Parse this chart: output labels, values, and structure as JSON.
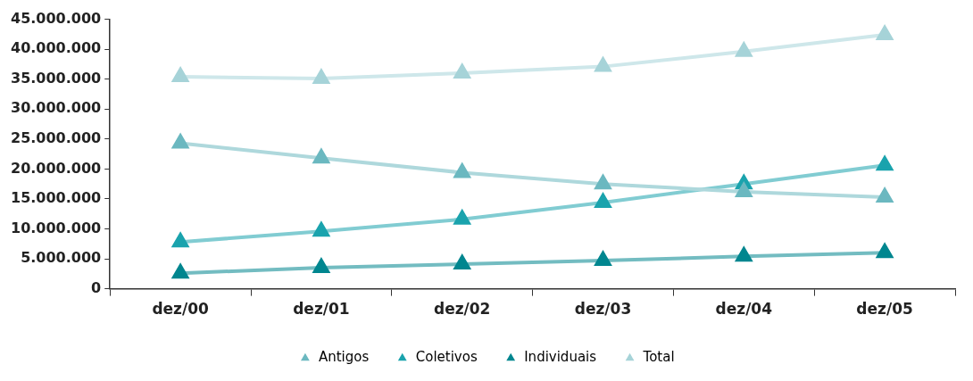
{
  "chart_data": {
    "type": "line",
    "categories": [
      "dez/00",
      "dez/01",
      "dez/02",
      "dez/03",
      "dez/04",
      "dez/05"
    ],
    "series": [
      {
        "name": "Antigos",
        "color": "#6bb8c0",
        "values": [
          24300000,
          21800000,
          19400000,
          17500000,
          16200000,
          15300000
        ]
      },
      {
        "name": "Coletivos",
        "color": "#1aa3ad",
        "values": [
          7800000,
          9600000,
          11600000,
          14400000,
          17500000,
          20600000
        ]
      },
      {
        "name": "Individuais",
        "color": "#00868f",
        "values": [
          2600000,
          3500000,
          4100000,
          4700000,
          5400000,
          6000000
        ]
      },
      {
        "name": "Total",
        "color": "#a6d3d8",
        "values": [
          35400000,
          35100000,
          36000000,
          37100000,
          39600000,
          42400000
        ]
      }
    ],
    "ylim": [
      0,
      45000000
    ],
    "yticks": [
      {
        "value": 0,
        "label": "0"
      },
      {
        "value": 5000000,
        "label": "5.000.000"
      },
      {
        "value": 10000000,
        "label": "10.000.000"
      },
      {
        "value": 15000000,
        "label": "15.000.000"
      },
      {
        "value": 20000000,
        "label": "20.000.000"
      },
      {
        "value": 25000000,
        "label": "25.000.000"
      },
      {
        "value": 30000000,
        "label": "30.000.000"
      },
      {
        "value": 35000000,
        "label": "35.000.000"
      },
      {
        "value": 40000000,
        "label": "40.000.000"
      },
      {
        "value": 45000000,
        "label": "45.000.000"
      }
    ],
    "grid": false,
    "legend": "bottom",
    "marker": "triangle",
    "line_style": "solid"
  }
}
